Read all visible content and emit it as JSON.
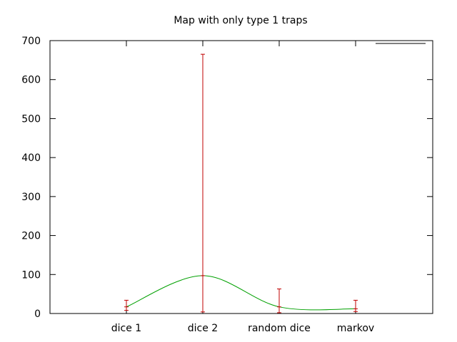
{
  "chart_data": {
    "type": "line",
    "title": "Map with only type 1 traps",
    "xlabel": "",
    "ylabel": "",
    "categories": [
      "dice 1",
      "dice 2",
      "random dice",
      "markov"
    ],
    "ylim": [
      0,
      700
    ],
    "yticks": [
      0,
      100,
      200,
      300,
      400,
      500,
      600,
      700
    ],
    "grid": false,
    "legend": "top-right",
    "series": [
      {
        "name": "",
        "values": [
          17,
          97,
          17,
          12
        ],
        "error_low": [
          8,
          4,
          2,
          5
        ],
        "error_high": [
          34,
          665,
          63,
          34
        ],
        "line_color": "#00a000",
        "error_color": "#c00000",
        "smooth": true
      }
    ]
  }
}
